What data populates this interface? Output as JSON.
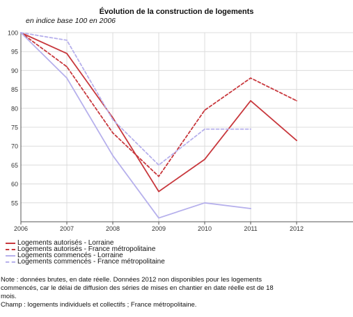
{
  "chart_data": {
    "type": "line",
    "title": "Évolution de la construction de logements",
    "subtitle": "en indice base 100 en 2006",
    "xlabel": "",
    "ylabel": "",
    "categories": [
      "2006",
      "2007",
      "2008",
      "2009",
      "2010",
      "2011",
      "2012"
    ],
    "x": [
      2006,
      2007,
      2008,
      2009,
      2010,
      2011,
      2012
    ],
    "ylim": [
      50,
      100
    ],
    "yticks": [
      55,
      60,
      65,
      70,
      75,
      80,
      85,
      90,
      95,
      100
    ],
    "grid": true,
    "legend_position": "bottom",
    "series": [
      {
        "name": "Logements autorisés - Lorraine",
        "values": [
          100,
          94.5,
          77.5,
          58,
          66.5,
          82,
          71.5
        ],
        "color": "#c8383d",
        "dash": "solid"
      },
      {
        "name": "Logements autorisés - France métropolitaine",
        "values": [
          100,
          91,
          73.5,
          62,
          79.5,
          88,
          82
        ],
        "color": "#c8383d",
        "dash": "dashed"
      },
      {
        "name": "Logements commencés - Lorraine",
        "values": [
          100,
          88,
          67.5,
          51,
          55,
          53.5,
          null
        ],
        "color": "#b6b0ec",
        "dash": "solid"
      },
      {
        "name": "Logements commencés - France métropolitaine",
        "values": [
          100,
          98,
          77,
          65,
          74.5,
          74.5,
          null
        ],
        "color": "#b6b0ec",
        "dash": "dashed"
      }
    ]
  },
  "notes": {
    "line1": "Note : données brutes, en date réelle. Données 2012 non disponibles pour les logements",
    "line2": "commencés, car le délai de diffusion des séries de mises en chantier en date réelle est de 18",
    "line3": "mois.",
    "line4": "Champ : logements individuels et collectifs ; France métropolitaine."
  }
}
